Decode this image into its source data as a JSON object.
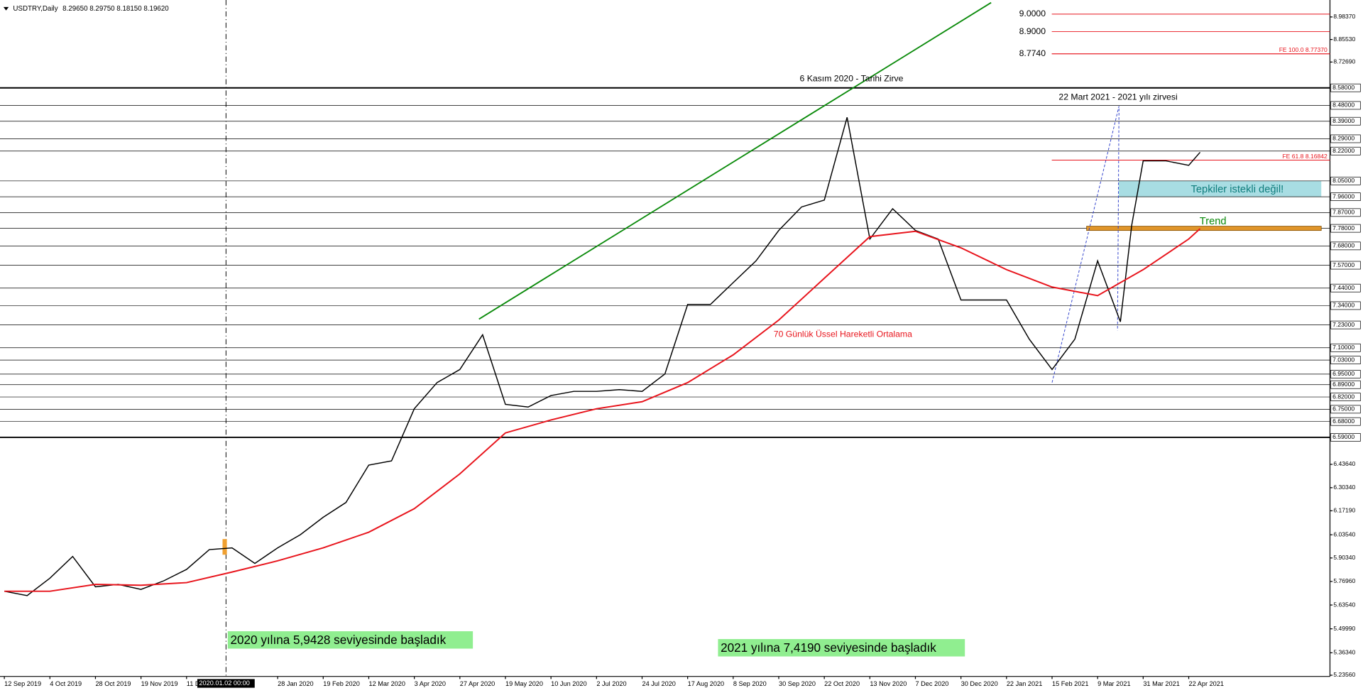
{
  "chart_data": {
    "type": "line",
    "title": "USDTRY,Daily",
    "subtitle": "8.29650 8.29750 8.18150 8.19620",
    "cursor_label": "2020.01.02 00:00",
    "xlim": [
      0,
      465
    ],
    "ylim": [
      5.2435,
      9.08
    ],
    "xticks": [
      {
        "value": 0,
        "label": "12 Sep 2019"
      },
      {
        "value": 16,
        "label": "4 Oct 2019"
      },
      {
        "value": 32,
        "label": "28 Oct 2019"
      },
      {
        "value": 48,
        "label": "19 Nov 2019"
      },
      {
        "value": 64,
        "label": "11 Dec 2019"
      },
      {
        "value": 96,
        "label": "28 Jan 2020"
      },
      {
        "value": 112,
        "label": "19 Feb 2020"
      },
      {
        "value": 128,
        "label": "12 Mar 2020"
      },
      {
        "value": 144,
        "label": "3 Apr 2020"
      },
      {
        "value": 160,
        "label": "27 Apr 2020"
      },
      {
        "value": 176,
        "label": "19 May 2020"
      },
      {
        "value": 192,
        "label": "10 Jun 2020"
      },
      {
        "value": 208,
        "label": "2 Jul 2020"
      },
      {
        "value": 224,
        "label": "24 Jul 2020"
      },
      {
        "value": 240,
        "label": "17 Aug 2020"
      },
      {
        "value": 256,
        "label": "8 Sep 2020"
      },
      {
        "value": 272,
        "label": "30 Sep 2020"
      },
      {
        "value": 288,
        "label": "22 Oct 2020"
      },
      {
        "value": 304,
        "label": "13 Nov 2020"
      },
      {
        "value": 320,
        "label": "7 Dec 2020"
      },
      {
        "value": 336,
        "label": "30 Dec 2020"
      },
      {
        "value": 352,
        "label": "22 Jan 2021"
      },
      {
        "value": 368,
        "label": "15 Feb 2021"
      },
      {
        "value": 384,
        "label": "9 Mar 2021"
      },
      {
        "value": 400,
        "label": "31 Mar 2021"
      },
      {
        "value": 416,
        "label": "22 Apr 2021"
      }
    ],
    "yticks": [
      {
        "value": 8.9837,
        "label": "8.98370"
      },
      {
        "value": 8.8553,
        "label": "8.85530"
      },
      {
        "value": 8.7269,
        "label": "8.72690"
      },
      {
        "value": 6.4364,
        "label": "6.43640"
      },
      {
        "value": 6.3034,
        "label": "6.30340"
      },
      {
        "value": 6.1719,
        "label": "6.17190"
      },
      {
        "value": 6.0354,
        "label": "6.03540"
      },
      {
        "value": 5.9034,
        "label": "5.90340"
      },
      {
        "value": 5.7696,
        "label": "5.76960"
      },
      {
        "value": 5.6354,
        "label": "5.63540"
      },
      {
        "value": 5.4999,
        "label": "5.49990"
      },
      {
        "value": 5.3634,
        "label": "5.36340"
      },
      {
        "value": 5.2356,
        "label": "5.23560"
      }
    ],
    "levels": [
      {
        "value": 8.58,
        "label": "8.58000"
      },
      {
        "value": 8.48,
        "label": "8.48000"
      },
      {
        "value": 8.39,
        "label": "8.39000"
      },
      {
        "value": 8.29,
        "label": "8.29000"
      },
      {
        "value": 8.22,
        "label": "8.22000"
      },
      {
        "value": 8.05,
        "label": "8.05000"
      },
      {
        "value": 7.96,
        "label": "7.96000"
      },
      {
        "value": 7.87,
        "label": "7.87000"
      },
      {
        "value": 7.78,
        "label": "7.78000"
      },
      {
        "value": 7.68,
        "label": "7.68000"
      },
      {
        "value": 7.57,
        "label": "7.57000"
      },
      {
        "value": 7.44,
        "label": "7.44000"
      },
      {
        "value": 7.34,
        "label": "7.34000"
      },
      {
        "value": 7.23,
        "label": "7.23000"
      },
      {
        "value": 7.1,
        "label": "7.10000"
      },
      {
        "value": 7.03,
        "label": "7.03000"
      },
      {
        "value": 6.95,
        "label": "6.95000"
      },
      {
        "value": 6.89,
        "label": "6.89000"
      },
      {
        "value": 6.82,
        "label": "6.82000"
      },
      {
        "value": 6.75,
        "label": "6.75000"
      },
      {
        "value": 6.68,
        "label": "6.68000"
      },
      {
        "value": 6.59,
        "label": "6.59000"
      }
    ],
    "fib_levels": [
      {
        "value": 9.0,
        "label": "9.0000"
      },
      {
        "value": 8.9,
        "label": "8.9000"
      },
      {
        "value": 8.774,
        "label": "8.7740"
      }
    ],
    "fe_levels": [
      {
        "value": 8.7737,
        "label": "FE 100.0 8.77370"
      },
      {
        "value": 8.16842,
        "label": "FE 61.8 8.16842"
      }
    ],
    "series": [
      {
        "name": "USDTRY",
        "color": "#000000",
        "x": [
          0,
          8,
          16,
          24,
          32,
          40,
          48,
          56,
          64,
          72,
          80,
          88,
          96,
          104,
          112,
          120,
          128,
          136,
          144,
          152,
          160,
          168,
          176,
          184,
          192,
          200,
          208,
          216,
          224,
          232,
          240,
          248,
          256,
          264,
          272,
          280,
          288,
          296,
          304,
          312,
          320,
          328,
          336,
          344,
          352,
          360,
          368,
          376,
          384,
          392,
          396,
          400,
          408,
          416,
          420
        ],
        "values": [
          5.714,
          5.689,
          5.788,
          5.912,
          5.739,
          5.753,
          5.724,
          5.773,
          5.838,
          5.951,
          5.961,
          5.872,
          5.961,
          6.036,
          6.135,
          6.219,
          6.432,
          6.456,
          6.753,
          6.902,
          6.976,
          7.174,
          6.778,
          6.763,
          6.828,
          6.852,
          6.852,
          6.862,
          6.852,
          6.951,
          7.347,
          7.347,
          7.471,
          7.595,
          7.768,
          7.902,
          7.941,
          8.412,
          7.719,
          7.892,
          7.768,
          7.719,
          7.372,
          7.372,
          7.372,
          7.149,
          6.976,
          7.149,
          7.595,
          7.248,
          7.8,
          8.164,
          8.164,
          8.139,
          8.213
        ]
      },
      {
        "name": "70 Günlük Üssel Hareketli Ortalama",
        "color": "#e8141c",
        "x": [
          0,
          16,
          32,
          48,
          64,
          80,
          96,
          112,
          128,
          144,
          160,
          176,
          192,
          208,
          224,
          240,
          256,
          272,
          288,
          304,
          320,
          336,
          352,
          368,
          384,
          400,
          416,
          420
        ],
        "values": [
          5.714,
          5.714,
          5.753,
          5.748,
          5.763,
          5.823,
          5.887,
          5.961,
          6.05,
          6.184,
          6.382,
          6.615,
          6.689,
          6.753,
          6.793,
          6.902,
          7.06,
          7.258,
          7.496,
          7.733,
          7.763,
          7.669,
          7.545,
          7.446,
          7.397,
          7.545,
          7.719,
          7.778
        ]
      }
    ],
    "trend_line": {
      "x": [
        166.7,
        346.6
      ],
      "values": [
        7.263,
        9.065
      ]
    },
    "fib_lines": {
      "x": [
        368,
        391.5,
        391
      ],
      "values": [
        6.902,
        8.476,
        7.199
      ]
    },
    "trend_level": 7.78,
    "zone": [
      7.96,
      8.05
    ],
    "annotations": [
      "6 Kasım 2020 - Tarihi Zirve",
      "22 Mart 2021 - 2021 yılı zirvesi",
      "70 Günlük Üssel Hareketli Ortalama",
      "Tepkiler istekli değil!",
      "Trend",
      "2020 yılına 5,9428 seviyesinde başladık",
      "2021 yılına 7,4190 seviyesinde başladık"
    ]
  }
}
